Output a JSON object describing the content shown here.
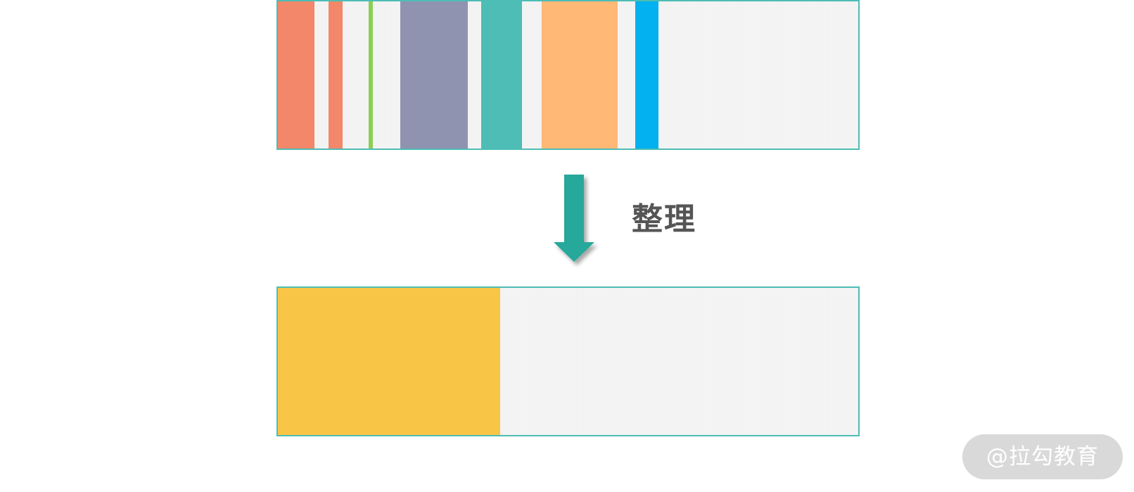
{
  "diagram": {
    "label": "整理",
    "watermark": "@拉勾教育",
    "colors": {
      "border": "#4dbdb5",
      "free": "#f2f2f2",
      "arrow": "#25a89b",
      "label": "#555555"
    },
    "before_blocks": [
      {
        "name": "block-coral-1",
        "color": "#f2876a"
      },
      {
        "name": "block-coral-2",
        "color": "#f2876a"
      },
      {
        "name": "block-green",
        "color": "#8ccf55"
      },
      {
        "name": "block-slate",
        "color": "#9093b0"
      },
      {
        "name": "block-teal",
        "color": "#4dbdb5"
      },
      {
        "name": "block-peach",
        "color": "#ffb876"
      },
      {
        "name": "block-blue",
        "color": "#03b0f0"
      }
    ],
    "after_blocks": [
      {
        "name": "block-consolidated",
        "color": "#f9c547"
      }
    ]
  }
}
